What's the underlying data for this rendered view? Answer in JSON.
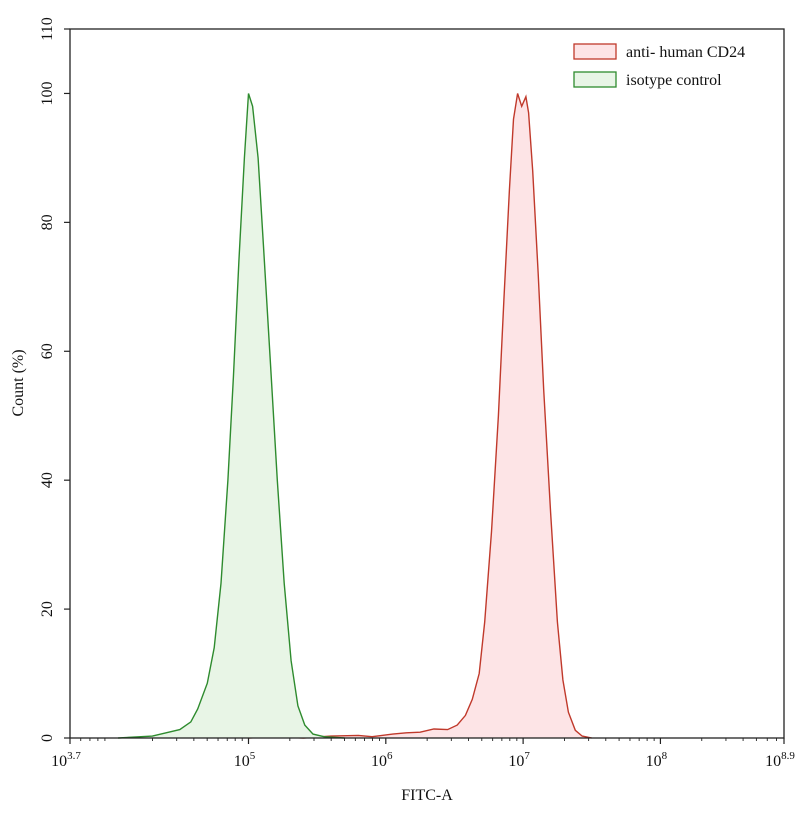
{
  "chart_data": {
    "type": "area",
    "xlabel": "FITC-A",
    "ylabel": "Count (%)",
    "x_scale": "log10",
    "xlim_log10": [
      3.7,
      8.9
    ],
    "ylim": [
      0,
      110
    ],
    "x_ticks": [
      {
        "base": "10",
        "exp": "3.7",
        "pos": 3.7
      },
      {
        "base": "10",
        "exp": "5",
        "pos": 5
      },
      {
        "base": "10",
        "exp": "6",
        "pos": 6
      },
      {
        "base": "10",
        "exp": "7",
        "pos": 7
      },
      {
        "base": "10",
        "exp": "8",
        "pos": 8
      },
      {
        "base": "10",
        "exp": "8.9",
        "pos": 8.9
      }
    ],
    "y_ticks": [
      0,
      20,
      40,
      60,
      80,
      100,
      110
    ],
    "grid": false,
    "legend_position": "top-right",
    "series": [
      {
        "name": "anti- human CD24",
        "stroke": "#c0392b",
        "fill": "#fde4e6",
        "points": [
          [
            5.0,
            0
          ],
          [
            5.2,
            0.2
          ],
          [
            5.4,
            0
          ],
          [
            5.6,
            0.3
          ],
          [
            5.8,
            0.4
          ],
          [
            5.9,
            0.2
          ],
          [
            6.05,
            0.6
          ],
          [
            6.15,
            0.8
          ],
          [
            6.25,
            0.9
          ],
          [
            6.35,
            1.4
          ],
          [
            6.45,
            1.3
          ],
          [
            6.52,
            2.0
          ],
          [
            6.58,
            3.5
          ],
          [
            6.63,
            6.0
          ],
          [
            6.68,
            10
          ],
          [
            6.72,
            18
          ],
          [
            6.77,
            32
          ],
          [
            6.82,
            50
          ],
          [
            6.86,
            68
          ],
          [
            6.9,
            85
          ],
          [
            6.93,
            96
          ],
          [
            6.96,
            100
          ],
          [
            6.99,
            98
          ],
          [
            7.02,
            99.5
          ],
          [
            7.04,
            97
          ],
          [
            7.07,
            88
          ],
          [
            7.11,
            72
          ],
          [
            7.15,
            54
          ],
          [
            7.2,
            35
          ],
          [
            7.25,
            18
          ],
          [
            7.29,
            9
          ],
          [
            7.33,
            4
          ],
          [
            7.38,
            1.2
          ],
          [
            7.43,
            0.3
          ],
          [
            7.5,
            0
          ]
        ]
      },
      {
        "name": "isotype control",
        "stroke": "#2e8b2e",
        "fill": "#e8f5e6",
        "points": [
          [
            4.05,
            0
          ],
          [
            4.3,
            0.3
          ],
          [
            4.4,
            0.8
          ],
          [
            4.5,
            1.3
          ],
          [
            4.58,
            2.5
          ],
          [
            4.63,
            4.5
          ],
          [
            4.7,
            8.5
          ],
          [
            4.75,
            14
          ],
          [
            4.8,
            24
          ],
          [
            4.85,
            40
          ],
          [
            4.89,
            56
          ],
          [
            4.93,
            74
          ],
          [
            4.97,
            90
          ],
          [
            5.0,
            100
          ],
          [
            5.03,
            98
          ],
          [
            5.07,
            90
          ],
          [
            5.11,
            76
          ],
          [
            5.16,
            58
          ],
          [
            5.21,
            40
          ],
          [
            5.26,
            24
          ],
          [
            5.31,
            12
          ],
          [
            5.36,
            5
          ],
          [
            5.41,
            2
          ],
          [
            5.47,
            0.6
          ],
          [
            5.55,
            0.2
          ],
          [
            5.7,
            0
          ]
        ]
      }
    ]
  }
}
